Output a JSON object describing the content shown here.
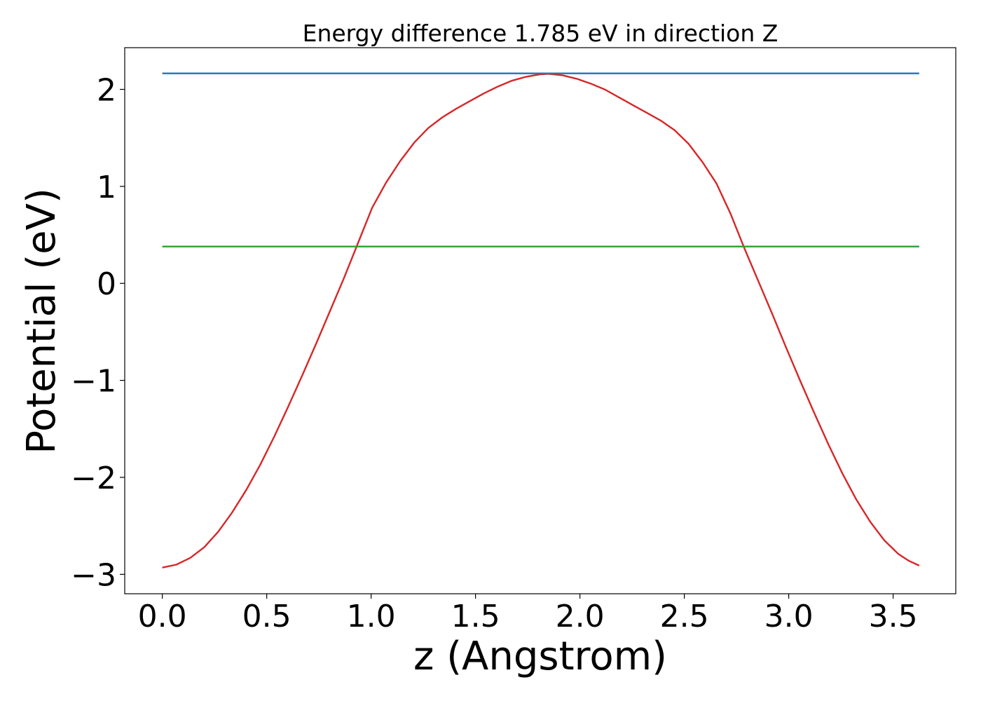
{
  "chart_data": {
    "type": "line",
    "title": "Energy difference 1.785 eV in direction Z",
    "xlabel": "z (Angstrom)",
    "ylabel": "Potential (eV)",
    "xlim": [
      -0.18,
      3.8
    ],
    "ylim": [
      -3.2,
      2.43
    ],
    "xticks": [
      0.0,
      0.5,
      1.0,
      1.5,
      2.0,
      2.5,
      3.0,
      3.5
    ],
    "xtick_labels": [
      "0.0",
      "0.5",
      "1.0",
      "1.5",
      "2.0",
      "2.5",
      "3.0",
      "3.5"
    ],
    "yticks": [
      -3,
      -2,
      -1,
      0,
      1,
      2
    ],
    "ytick_labels": [
      "−3",
      "−2",
      "−1",
      "0",
      "1",
      "2"
    ],
    "grid": false,
    "series": [
      {
        "color": "#d62728",
        "x": [
          0.0,
          0.067,
          0.134,
          0.201,
          0.268,
          0.335,
          0.402,
          0.469,
          0.536,
          0.603,
          0.67,
          0.737,
          0.804,
          0.871,
          0.938,
          1.005,
          1.072,
          1.139,
          1.206,
          1.273,
          1.34,
          1.407,
          1.474,
          1.541,
          1.608,
          1.675,
          1.742,
          1.809,
          1.85,
          1.917,
          1.984,
          2.051,
          2.118,
          2.185,
          2.252,
          2.319,
          2.386,
          2.453,
          2.52,
          2.587,
          2.654,
          2.721,
          2.788,
          2.855,
          2.922,
          2.989,
          3.056,
          3.123,
          3.19,
          3.257,
          3.324,
          3.391,
          3.458,
          3.525,
          3.575,
          3.625
        ],
        "y": [
          -2.93,
          -2.9,
          -2.83,
          -2.72,
          -2.56,
          -2.36,
          -2.13,
          -1.87,
          -1.58,
          -1.27,
          -0.95,
          -0.62,
          -0.28,
          0.06,
          0.42,
          0.78,
          1.04,
          1.26,
          1.45,
          1.6,
          1.71,
          1.8,
          1.88,
          1.96,
          2.03,
          2.09,
          2.13,
          2.155,
          2.16,
          2.145,
          2.11,
          2.06,
          2.0,
          1.92,
          1.84,
          1.76,
          1.68,
          1.58,
          1.44,
          1.25,
          1.03,
          0.72,
          0.36,
          0.02,
          -0.32,
          -0.67,
          -1.01,
          -1.34,
          -1.66,
          -1.96,
          -2.23,
          -2.46,
          -2.65,
          -2.79,
          -2.86,
          -2.91
        ]
      },
      {
        "color": "#1f77b4",
        "x": [
          0.0,
          3.625
        ],
        "y": [
          2.165,
          2.165
        ]
      },
      {
        "color": "#2ca02c",
        "x": [
          0.0,
          3.625
        ],
        "y": [
          0.38,
          0.38
        ]
      }
    ]
  }
}
